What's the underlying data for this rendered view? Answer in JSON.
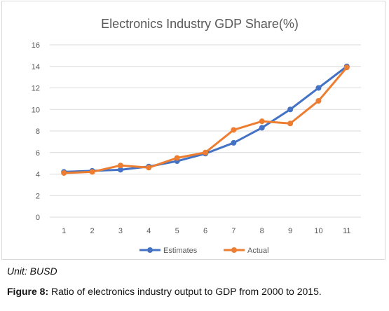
{
  "colors": {
    "estimates": "#4472C4",
    "actual": "#ED7D31",
    "grid": "#d9d9d9",
    "text": "#595959"
  },
  "unit_note": "Unit: BUSD",
  "caption": {
    "label": "Figure 8:",
    "text": " Ratio of electronics industry output to GDP from 2000 to 2015."
  },
  "chart_data": {
    "type": "line",
    "title": "Electronics Industry GDP Share(%)",
    "xlabel": "",
    "ylabel": "",
    "categories": [
      "1",
      "2",
      "3",
      "4",
      "5",
      "6",
      "7",
      "8",
      "9",
      "10",
      "11"
    ],
    "ylim": [
      0,
      16
    ],
    "yticks": [
      0,
      2,
      4,
      6,
      8,
      10,
      12,
      14,
      16
    ],
    "grid": true,
    "legend_position": "bottom",
    "series": [
      {
        "name": "Estimates",
        "color": "#4472C4",
        "values": [
          4.2,
          4.3,
          4.4,
          4.7,
          5.2,
          5.9,
          6.9,
          8.3,
          10.0,
          12.0,
          14.0
        ]
      },
      {
        "name": "Actual",
        "color": "#ED7D31",
        "values": [
          4.1,
          4.2,
          4.8,
          4.6,
          5.5,
          6.0,
          8.1,
          8.9,
          8.7,
          10.8,
          13.9
        ]
      }
    ]
  }
}
